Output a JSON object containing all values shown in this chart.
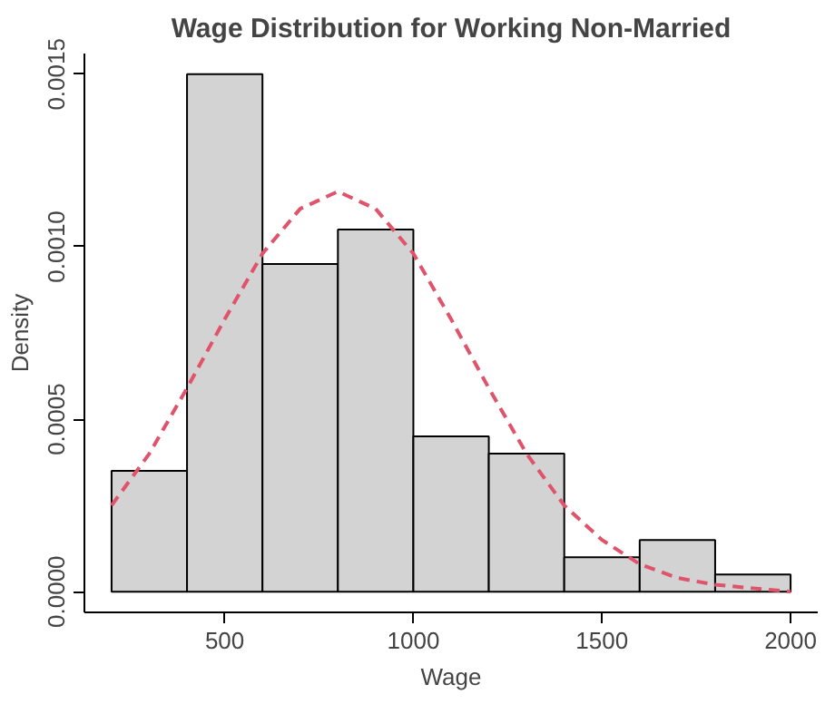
{
  "chart_data": {
    "type": "histogram",
    "title": "Wage Distribution for Working Non-Married",
    "xlabel": "Wage",
    "ylabel": "Density",
    "bins": [
      200,
      400,
      600,
      800,
      1000,
      1200,
      1400,
      1600,
      1800,
      2000
    ],
    "values": [
      0.00035,
      0.0015,
      0.00095,
      0.00105,
      0.00045,
      0.0004,
      0.0001,
      0.00015,
      5e-05
    ],
    "color": "#d3d3d3",
    "series": [
      {
        "type": "line",
        "color": "#df536b",
        "line_style": "dashed",
        "x": [
          200,
          300,
          400,
          500,
          600,
          700,
          800,
          900,
          1000,
          1100,
          1200,
          1300,
          1400,
          1500,
          1600,
          1700,
          1800,
          1900,
          2000
        ],
        "values": [
          0.00025,
          0.0004,
          0.00059,
          0.00079,
          0.00098,
          0.00111,
          0.00116,
          0.00111,
          0.00098,
          0.00079,
          0.00059,
          0.0004,
          0.00025,
          0.00015,
          8e-05,
          4e-05,
          2e-05,
          1e-05,
          0.0
        ]
      }
    ],
    "xlim": [
      128,
      2072
    ],
    "ylim": [
      -6e-05,
      0.00156
    ],
    "xticks": [
      500,
      1000,
      1500,
      2000
    ],
    "yticks": [
      {
        "value": 0,
        "label": "0.0000"
      },
      {
        "value": 0.0005,
        "label": "0.0005"
      },
      {
        "value": 0.001,
        "label": "0.0010"
      },
      {
        "value": 0.0015,
        "label": "0.0015"
      }
    ]
  }
}
